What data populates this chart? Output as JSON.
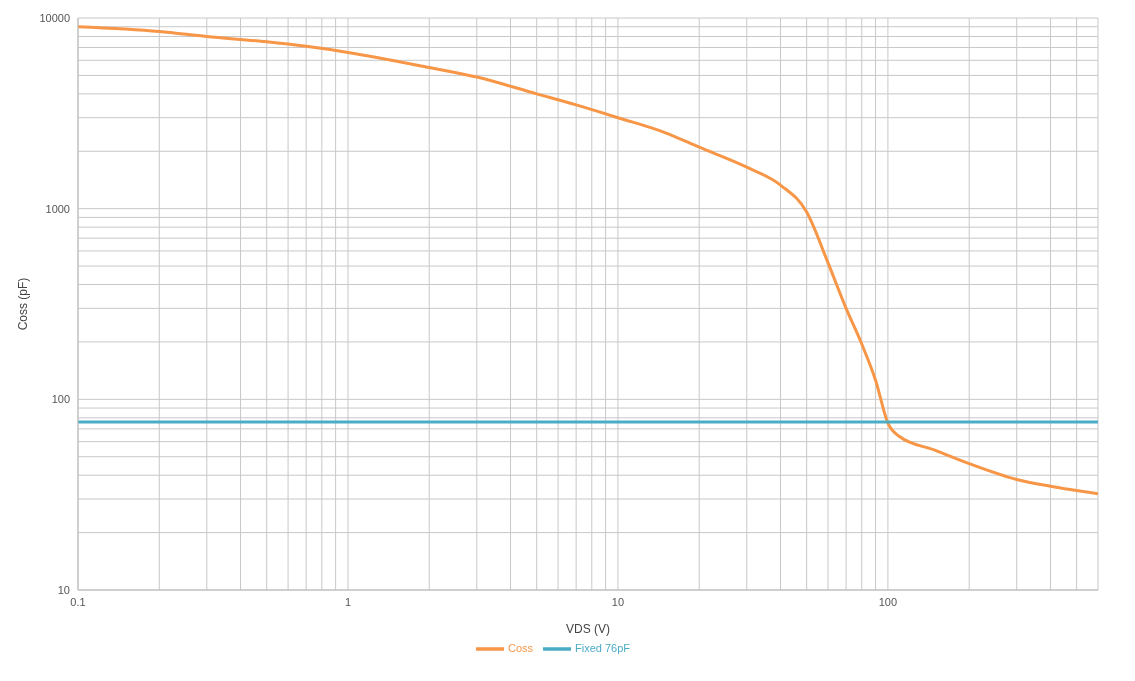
{
  "chart_data": {
    "type": "line",
    "xlabel": "VDS (V)",
    "ylabel": "Coss (pF)",
    "log": "xy",
    "grid": true,
    "legend": "bottom",
    "marker": "none",
    "line_style": "solid",
    "xlim": [
      0.1,
      600
    ],
    "ylim": [
      10,
      10000
    ],
    "xticks": [
      0.1,
      {
        "value": 0.2,
        "label": null
      },
      {
        "value": 0.3,
        "label": null
      },
      {
        "value": 0.4,
        "label": null
      },
      {
        "value": 0.5,
        "label": null
      },
      {
        "value": 0.6,
        "label": null
      },
      {
        "value": 0.7,
        "label": null
      },
      {
        "value": 0.8,
        "label": null
      },
      {
        "value": 0.9,
        "label": null
      },
      1,
      {
        "value": 2,
        "label": null
      },
      {
        "value": 3,
        "label": null
      },
      {
        "value": 4,
        "label": null
      },
      {
        "value": 5,
        "label": null
      },
      {
        "value": 6,
        "label": null
      },
      {
        "value": 7,
        "label": null
      },
      {
        "value": 8,
        "label": null
      },
      {
        "value": 9,
        "label": null
      },
      10,
      {
        "value": 20,
        "label": null
      },
      {
        "value": 30,
        "label": null
      },
      {
        "value": 40,
        "label": null
      },
      {
        "value": 50,
        "label": null
      },
      {
        "value": 60,
        "label": null
      },
      {
        "value": 70,
        "label": null
      },
      {
        "value": 80,
        "label": null
      },
      {
        "value": 90,
        "label": null
      },
      100,
      {
        "value": 200,
        "label": null
      },
      {
        "value": 300,
        "label": null
      },
      {
        "value": 400,
        "label": null
      },
      {
        "value": 500,
        "label": null
      }
    ],
    "yticks": [
      10,
      {
        "value": 20,
        "label": null
      },
      {
        "value": 30,
        "label": null
      },
      {
        "value": 40,
        "label": null
      },
      {
        "value": 50,
        "label": null
      },
      {
        "value": 60,
        "label": null
      },
      {
        "value": 70,
        "label": null
      },
      {
        "value": 80,
        "label": null
      },
      {
        "value": 90,
        "label": null
      },
      100,
      {
        "value": 200,
        "label": null
      },
      {
        "value": 300,
        "label": null
      },
      {
        "value": 400,
        "label": null
      },
      {
        "value": 500,
        "label": null
      },
      {
        "value": 600,
        "label": null
      },
      {
        "value": 700,
        "label": null
      },
      {
        "value": 800,
        "label": null
      },
      {
        "value": 900,
        "label": null
      },
      1000,
      {
        "value": 2000,
        "label": null
      },
      {
        "value": 3000,
        "label": null
      },
      {
        "value": 4000,
        "label": null
      },
      {
        "value": 5000,
        "label": null
      },
      {
        "value": 6000,
        "label": null
      },
      {
        "value": 7000,
        "label": null
      },
      {
        "value": 8000,
        "label": null
      },
      {
        "value": 9000,
        "label": null
      },
      10000
    ],
    "series": [
      {
        "name": "Coss",
        "color": "#f79646",
        "x": [
          0.1,
          0.2,
          0.3,
          0.5,
          0.7,
          1,
          2,
          3,
          5,
          7,
          10,
          15,
          20,
          30,
          40,
          50,
          60,
          70,
          80,
          90,
          100,
          110,
          150,
          200,
          300,
          400,
          600
        ],
        "values": [
          9000,
          8500,
          8000,
          7500,
          7100,
          6600,
          5500,
          4900,
          4000,
          3500,
          3000,
          2500,
          2100,
          1650,
          1330,
          960,
          520,
          300,
          195,
          126,
          75,
          64,
          54,
          46,
          38,
          35,
          32
        ]
      },
      {
        "name": "Fixed 76pF",
        "color": "#4bacc6",
        "x": [
          0.1,
          600
        ],
        "values": [
          76,
          76
        ]
      }
    ]
  }
}
